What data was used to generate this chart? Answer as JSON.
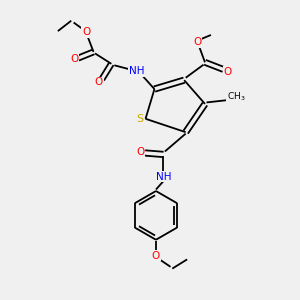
{
  "bg_color": "#f0f0f0",
  "atom_colors": {
    "O": "#ff0000",
    "N": "#0000ff",
    "S": "#ccaa00",
    "C": "#000000",
    "H": "#4a9090"
  },
  "bond_lw": 1.3,
  "font_size": 7.5,
  "fig_size": [
    3.0,
    3.0
  ],
  "dpi": 100
}
